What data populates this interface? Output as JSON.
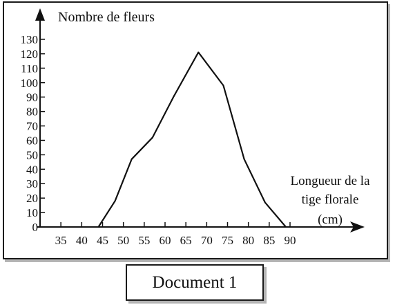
{
  "chart_data": {
    "type": "line",
    "title": "",
    "ylabel": "Nombre de fleurs",
    "xlabel_lines": [
      "Longueur de la",
      "tige florale",
      "(cm)"
    ],
    "xticks": [
      35,
      40,
      45,
      50,
      55,
      60,
      65,
      70,
      75,
      80,
      85,
      90
    ],
    "yticks": [
      0,
      10,
      20,
      30,
      40,
      50,
      60,
      70,
      80,
      90,
      100,
      110,
      120,
      130
    ],
    "xlim": [
      30,
      90
    ],
    "ylim": [
      0,
      130
    ],
    "grid": false,
    "x": [
      44,
      48,
      52,
      57,
      62,
      68,
      74,
      79,
      84,
      89
    ],
    "y": [
      0,
      18,
      47,
      62,
      90,
      121,
      98,
      47,
      17,
      0
    ]
  },
  "caption": "Document 1"
}
